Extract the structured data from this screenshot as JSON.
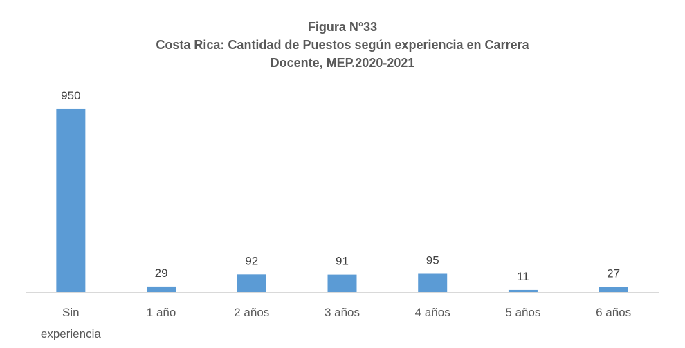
{
  "chart_data": {
    "type": "bar",
    "title": "Figura N°33",
    "subtitle": [
      "Costa Rica: Cantidad de Puestos según experiencia en Carrera",
      "Docente, MEP.2020-2021"
    ],
    "categories": [
      "Sin experiencia",
      "1 año",
      "2 años",
      "3 años",
      "4 años",
      "5 años",
      "6 años"
    ],
    "values": [
      950,
      29,
      92,
      91,
      95,
      11,
      27
    ],
    "color": "#5b9bd5",
    "ylim": [
      0,
      1000
    ]
  }
}
